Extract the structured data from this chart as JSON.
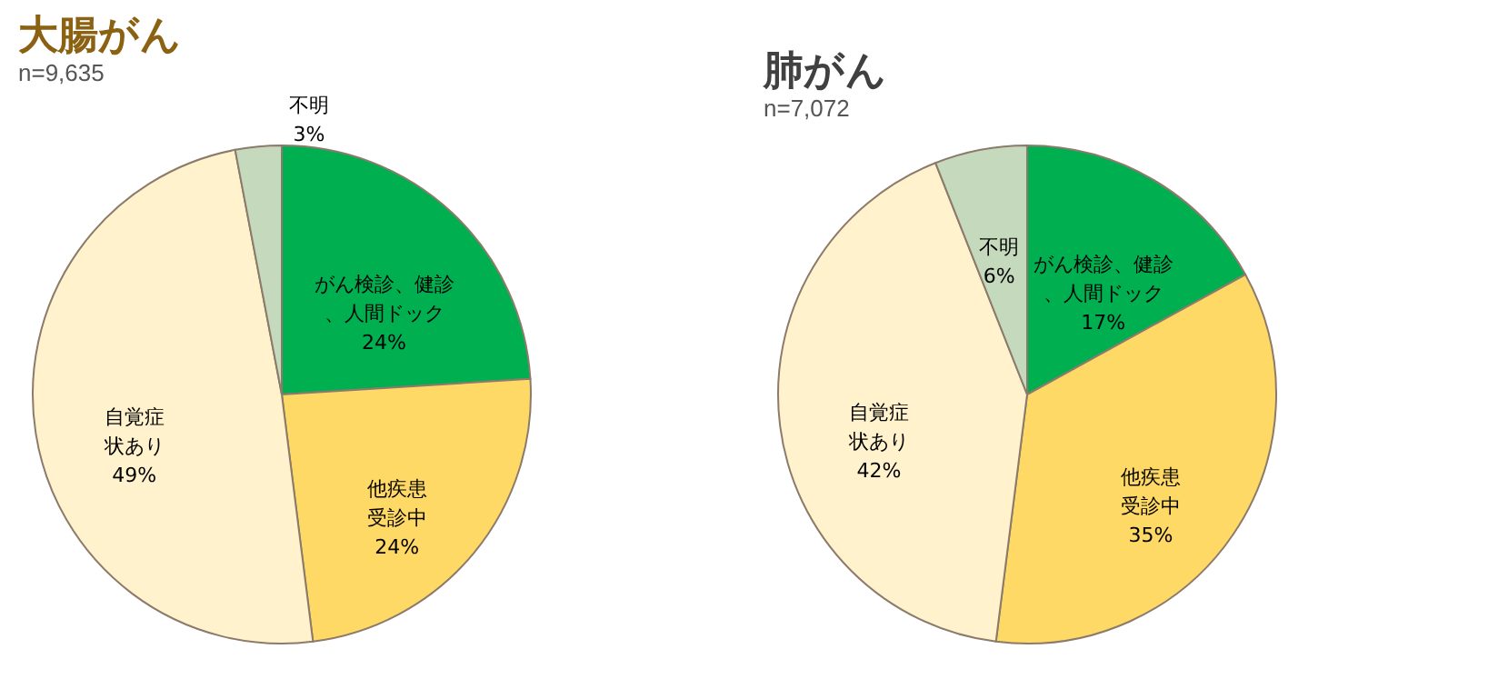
{
  "chart_data": [
    {
      "type": "pie",
      "title": "大腸がん",
      "subtitle": "n=9,635",
      "categories": [
        "がん検診、健診、人間ドック",
        "他疾患受診中",
        "自覚症状あり",
        "不明"
      ],
      "values": [
        24,
        24,
        49,
        3
      ],
      "colors": [
        "#00b050",
        "#ffd966",
        "#fff2cc",
        "#c5d9bc"
      ],
      "value_labels": [
        "24%",
        "24%",
        "49%",
        "3%"
      ]
    },
    {
      "type": "pie",
      "title": "肺がん",
      "subtitle": "n=7,072",
      "categories": [
        "がん検診、健診、人間ドック",
        "他疾患受診中",
        "自覚症状あり",
        "不明"
      ],
      "values": [
        17,
        35,
        42,
        6
      ],
      "colors": [
        "#00b050",
        "#ffd966",
        "#fff2cc",
        "#c5d9bc"
      ],
      "value_labels": [
        "17%",
        "35%",
        "42%",
        "6%"
      ]
    }
  ]
}
